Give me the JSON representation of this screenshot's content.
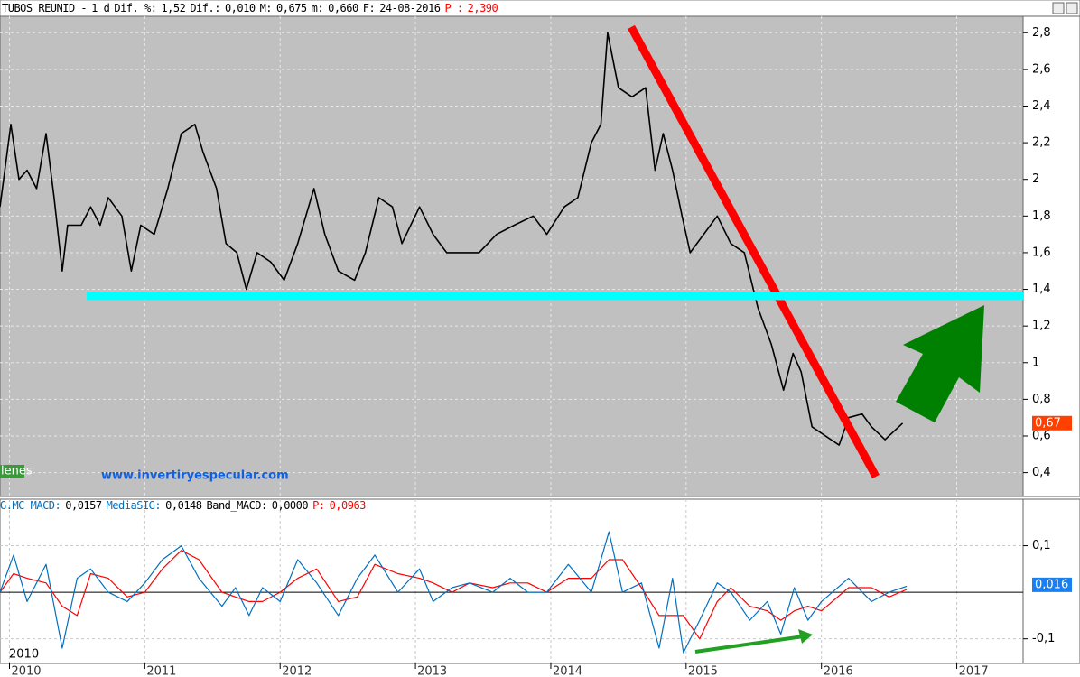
{
  "header": {
    "items": [
      {
        "text": "TUBOS REUNID -",
        "color": "#000000"
      },
      {
        "text": "1 d",
        "color": "#000000"
      },
      {
        "text": "Dif. %:",
        "color": "#000000"
      },
      {
        "text": "1,52",
        "color": "#000000"
      },
      {
        "text": "Dif.:",
        "color": "#000000"
      },
      {
        "text": "0,010",
        "color": "#000000"
      },
      {
        "text": "M:",
        "color": "#000000"
      },
      {
        "text": "0,675",
        "color": "#000000"
      },
      {
        "text": "m:",
        "color": "#000000"
      },
      {
        "text": "0,660",
        "color": "#000000"
      },
      {
        "text": "F:",
        "color": "#000000"
      },
      {
        "text": "24-08-2016",
        "color": "#000000"
      },
      {
        "text": "P :",
        "color": "#ff0000"
      },
      {
        "text": "2,390",
        "color": "#ff0000"
      }
    ]
  },
  "indicator_header": {
    "items": [
      {
        "text": "G.MC MACD:",
        "color": "#0070c0"
      },
      {
        "text": "0,0157",
        "color": "#000000"
      },
      {
        "text": "MediaSIG:",
        "color": "#0070c0"
      },
      {
        "text": "0,0148",
        "color": "#000000"
      },
      {
        "text": "Band_MACD:",
        "color": "#000000"
      },
      {
        "text": "0,0000",
        "color": "#000000"
      },
      {
        "text": "P:",
        "color": "#ff0000"
      },
      {
        "text": "0,0963",
        "color": "#ff0000"
      }
    ]
  },
  "watermark": "www.invertiryespecular.com",
  "volume_tag": "lenes",
  "panel_year_label": "2010",
  "chart_data": [
    {
      "type": "line",
      "x": [
        2009.93,
        2010.01,
        2010.07,
        2010.13,
        2010.2,
        2010.27,
        2010.33,
        2010.39,
        2010.43,
        2010.53,
        2010.6,
        2010.67,
        2010.73,
        2010.83,
        2010.9,
        2010.97,
        2011.07,
        2011.17,
        2011.27,
        2011.37,
        2011.43,
        2011.53,
        2011.6,
        2011.68,
        2011.75,
        2011.83,
        2011.93,
        2012.03,
        2012.13,
        2012.25,
        2012.33,
        2012.43,
        2012.55,
        2012.63,
        2012.73,
        2012.83,
        2012.9,
        2013.03,
        2013.13,
        2013.23,
        2013.33,
        2013.47,
        2013.6,
        2013.73,
        2013.87,
        2013.97,
        2014.1,
        2014.2,
        2014.3,
        2014.37,
        2014.42,
        2014.5,
        2014.6,
        2014.7,
        2014.77,
        2014.83,
        2014.9,
        2014.97,
        2015.03,
        2015.13,
        2015.23,
        2015.33,
        2015.43,
        2015.53,
        2015.63,
        2015.72,
        2015.79,
        2015.85,
        2015.93,
        2016.03,
        2016.13,
        2016.2,
        2016.3,
        2016.37,
        2016.47,
        2016.6
      ],
      "values": [
        1.85,
        2.3,
        2.0,
        2.05,
        1.95,
        2.25,
        1.9,
        1.5,
        1.75,
        1.75,
        1.85,
        1.75,
        1.9,
        1.8,
        1.5,
        1.75,
        1.7,
        1.95,
        2.25,
        2.3,
        2.15,
        1.95,
        1.65,
        1.6,
        1.4,
        1.6,
        1.55,
        1.45,
        1.65,
        1.95,
        1.7,
        1.5,
        1.45,
        1.6,
        1.9,
        1.85,
        1.65,
        1.85,
        1.7,
        1.6,
        1.6,
        1.6,
        1.7,
        1.75,
        1.8,
        1.7,
        1.85,
        1.9,
        2.2,
        2.3,
        2.8,
        2.5,
        2.45,
        2.5,
        2.05,
        2.25,
        2.05,
        1.8,
        1.6,
        1.7,
        1.8,
        1.65,
        1.6,
        1.3,
        1.1,
        0.85,
        1.05,
        0.95,
        0.65,
        0.6,
        0.55,
        0.7,
        0.72,
        0.65,
        0.58,
        0.67
      ],
      "color": "#000000",
      "background": "#c0c0c0",
      "xlim": [
        2009.93,
        2017.49
      ],
      "xticks": [
        2010,
        2011,
        2012,
        2013,
        2014,
        2015,
        2016,
        2017
      ],
      "ylim": [
        0.27,
        2.89
      ],
      "yticks": [
        {
          "value": 0.4,
          "label": "0,4"
        },
        {
          "value": 0.6,
          "label": "0,6"
        },
        {
          "value": 0.8,
          "label": "0,8"
        },
        {
          "value": 1,
          "label": "1"
        },
        {
          "value": 1.2,
          "label": "1,2"
        },
        {
          "value": 1.4,
          "label": "1,4"
        },
        {
          "value": 1.6,
          "label": "1,6"
        },
        {
          "value": 1.8,
          "label": "1,8"
        },
        {
          "value": 2,
          "label": "2"
        },
        {
          "value": 2.2,
          "label": "2,2"
        },
        {
          "value": 2.4,
          "label": "2,4"
        },
        {
          "value": 2.6,
          "label": "2,6"
        },
        {
          "value": 2.8,
          "label": "2,8"
        }
      ],
      "grid": true,
      "last_value": {
        "value": 0.67,
        "label": "0,67"
      },
      "tag_color": "#ff4000"
    },
    {
      "type": "line",
      "x": [
        2009.93,
        2010.03,
        2010.13,
        2010.27,
        2010.39,
        2010.5,
        2010.6,
        2010.73,
        2010.87,
        2011.0,
        2011.13,
        2011.27,
        2011.4,
        2011.57,
        2011.67,
        2011.77,
        2011.87,
        2012.0,
        2012.13,
        2012.27,
        2012.43,
        2012.57,
        2012.7,
        2012.87,
        2013.03,
        2013.13,
        2013.27,
        2013.4,
        2013.57,
        2013.7,
        2013.83,
        2013.97,
        2014.13,
        2014.3,
        2014.43,
        2014.53,
        2014.67,
        2014.8,
        2014.9,
        2014.98,
        2015.1,
        2015.23,
        2015.33,
        2015.47,
        2015.6,
        2015.7,
        2015.8,
        2015.9,
        2016.0,
        2016.2,
        2016.37,
        2016.5,
        2016.63
      ],
      "series": [
        {
          "color": "#ff0000",
          "values": [
            0.0,
            0.04,
            0.03,
            0.02,
            -0.03,
            -0.05,
            0.04,
            0.03,
            -0.01,
            0.0,
            0.05,
            0.09,
            0.07,
            0.0,
            -0.01,
            -0.02,
            -0.02,
            0.0,
            0.03,
            0.05,
            -0.02,
            -0.01,
            0.06,
            0.04,
            0.03,
            0.02,
            0.0,
            0.02,
            0.01,
            0.02,
            0.02,
            0.0,
            0.03,
            0.03,
            0.07,
            0.07,
            0.01,
            -0.05,
            -0.05,
            -0.05,
            -0.1,
            -0.02,
            0.01,
            -0.03,
            -0.04,
            -0.06,
            -0.04,
            -0.03,
            -0.04,
            0.01,
            0.01,
            -0.01,
            0.006
          ]
        },
        {
          "color": "#0070c0",
          "values": [
            0.0,
            0.08,
            -0.02,
            0.06,
            -0.12,
            0.03,
            0.05,
            0.0,
            -0.02,
            0.02,
            0.07,
            0.1,
            0.03,
            -0.03,
            0.01,
            -0.05,
            0.01,
            -0.02,
            0.07,
            0.02,
            -0.05,
            0.03,
            0.08,
            0.0,
            0.05,
            -0.02,
            0.01,
            0.02,
            0.0,
            0.03,
            0.0,
            0.0,
            0.06,
            0.0,
            0.13,
            0.0,
            0.02,
            -0.12,
            0.03,
            -0.13,
            -0.06,
            0.02,
            0.0,
            -0.06,
            -0.02,
            -0.09,
            0.01,
            -0.06,
            -0.02,
            0.03,
            -0.02,
            0.0,
            0.013
          ]
        }
      ],
      "xlim": [
        2009.93,
        2017.49
      ],
      "xticks": [
        2010,
        2011,
        2012,
        2013,
        2014,
        2015,
        2016,
        2017
      ],
      "ylim": [
        -0.153,
        0.2
      ],
      "yticks": [
        {
          "value": -0.1,
          "label": "-0,1"
        },
        {
          "value": 0.1,
          "label": "0,1"
        }
      ],
      "zero_line": 0,
      "grid": true,
      "background": "#ffffff",
      "last_value": {
        "value": 0.016,
        "label": "0,016"
      },
      "tag_color": "#1a7ff0"
    }
  ]
}
